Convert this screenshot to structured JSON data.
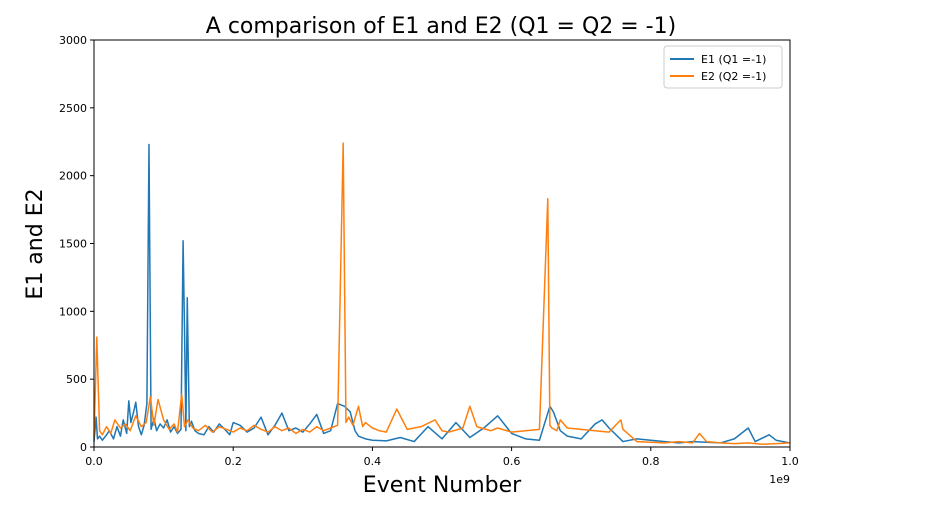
{
  "chart_data": {
    "type": "line",
    "title": "A comparison of E1 and E2 (Q1 = Q2 = -1)",
    "xlabel": "Event Number",
    "ylabel": "E1 and E2",
    "x_offset_label": "1e9",
    "xlim": [
      0,
      1.0
    ],
    "ylim": [
      0,
      3000
    ],
    "x_ticks": [
      0.0,
      0.2,
      0.4,
      0.6,
      0.8,
      1.0
    ],
    "x_tick_labels": [
      "0.0",
      "0.2",
      "0.4",
      "0.6",
      "0.8",
      "1.0"
    ],
    "y_ticks": [
      0,
      500,
      1000,
      1500,
      2000,
      2500,
      3000
    ],
    "y_tick_labels": [
      "0",
      "500",
      "1000",
      "1500",
      "2000",
      "2500",
      "3000"
    ],
    "grid": false,
    "legend_position": "top-right",
    "series": [
      {
        "name": "E1 (Q1 =-1)",
        "color": "#1f77b4",
        "x": [
          0.0,
          0.003,
          0.005,
          0.008,
          0.012,
          0.018,
          0.022,
          0.028,
          0.033,
          0.038,
          0.042,
          0.047,
          0.05,
          0.053,
          0.057,
          0.06,
          0.064,
          0.068,
          0.072,
          0.076,
          0.079,
          0.082,
          0.086,
          0.09,
          0.095,
          0.1,
          0.105,
          0.11,
          0.115,
          0.12,
          0.125,
          0.128,
          0.13,
          0.132,
          0.134,
          0.137,
          0.14,
          0.145,
          0.15,
          0.158,
          0.165,
          0.172,
          0.18,
          0.188,
          0.195,
          0.2,
          0.21,
          0.22,
          0.23,
          0.24,
          0.25,
          0.26,
          0.27,
          0.28,
          0.29,
          0.3,
          0.31,
          0.32,
          0.33,
          0.34,
          0.35,
          0.36,
          0.368,
          0.375,
          0.38,
          0.39,
          0.4,
          0.42,
          0.44,
          0.46,
          0.48,
          0.5,
          0.52,
          0.54,
          0.56,
          0.58,
          0.6,
          0.62,
          0.64,
          0.655,
          0.66,
          0.67,
          0.68,
          0.7,
          0.72,
          0.73,
          0.74,
          0.76,
          0.78,
          0.8,
          0.82,
          0.84,
          0.86,
          0.88,
          0.9,
          0.92,
          0.94,
          0.95,
          0.97,
          0.98,
          1.0
        ],
        "y": [
          40,
          220,
          60,
          80,
          50,
          90,
          120,
          60,
          150,
          80,
          200,
          100,
          340,
          180,
          260,
          330,
          150,
          90,
          160,
          320,
          2230,
          130,
          210,
          120,
          170,
          140,
          200,
          110,
          150,
          100,
          130,
          1520,
          880,
          120,
          1100,
          150,
          190,
          120,
          100,
          90,
          150,
          110,
          170,
          130,
          90,
          180,
          160,
          110,
          140,
          220,
          90,
          160,
          250,
          120,
          140,
          110,
          170,
          240,
          100,
          120,
          320,
          300,
          260,
          120,
          80,
          60,
          50,
          45,
          70,
          40,
          150,
          60,
          180,
          70,
          140,
          230,
          100,
          60,
          50,
          300,
          260,
          120,
          80,
          60,
          170,
          200,
          140,
          40,
          60,
          50,
          40,
          30,
          40,
          35,
          30,
          60,
          140,
          40,
          90,
          50,
          30
        ]
      },
      {
        "name": "E2 (Q2 =-1)",
        "color": "#ff7f0e",
        "x": [
          0.0,
          0.004,
          0.008,
          0.012,
          0.018,
          0.024,
          0.03,
          0.038,
          0.045,
          0.052,
          0.06,
          0.068,
          0.075,
          0.081,
          0.086,
          0.092,
          0.1,
          0.108,
          0.115,
          0.12,
          0.126,
          0.13,
          0.135,
          0.142,
          0.15,
          0.16,
          0.17,
          0.18,
          0.19,
          0.2,
          0.21,
          0.22,
          0.23,
          0.24,
          0.25,
          0.26,
          0.27,
          0.28,
          0.29,
          0.3,
          0.31,
          0.32,
          0.33,
          0.34,
          0.35,
          0.358,
          0.362,
          0.366,
          0.372,
          0.38,
          0.386,
          0.39,
          0.4,
          0.41,
          0.42,
          0.435,
          0.45,
          0.47,
          0.49,
          0.5,
          0.51,
          0.53,
          0.54,
          0.55,
          0.57,
          0.58,
          0.6,
          0.62,
          0.64,
          0.652,
          0.655,
          0.658,
          0.665,
          0.67,
          0.68,
          0.7,
          0.72,
          0.74,
          0.757,
          0.76,
          0.78,
          0.8,
          0.82,
          0.84,
          0.86,
          0.87,
          0.88,
          0.9,
          0.92,
          0.94,
          0.96,
          0.98,
          1.0
        ],
        "y": [
          60,
          810,
          120,
          90,
          150,
          100,
          200,
          140,
          170,
          120,
          230,
          150,
          180,
          370,
          160,
          350,
          200,
          130,
          170,
          110,
          390,
          150,
          200,
          140,
          120,
          160,
          110,
          150,
          130,
          110,
          140,
          120,
          160,
          130,
          110,
          150,
          120,
          140,
          100,
          130,
          110,
          150,
          120,
          140,
          160,
          2240,
          180,
          220,
          160,
          300,
          150,
          180,
          140,
          120,
          110,
          280,
          130,
          150,
          200,
          120,
          110,
          140,
          300,
          150,
          120,
          140,
          110,
          120,
          130,
          1830,
          160,
          140,
          120,
          200,
          140,
          130,
          120,
          110,
          200,
          130,
          40,
          35,
          30,
          40,
          30,
          100,
          40,
          30,
          25,
          30,
          20,
          25,
          30
        ]
      }
    ]
  }
}
